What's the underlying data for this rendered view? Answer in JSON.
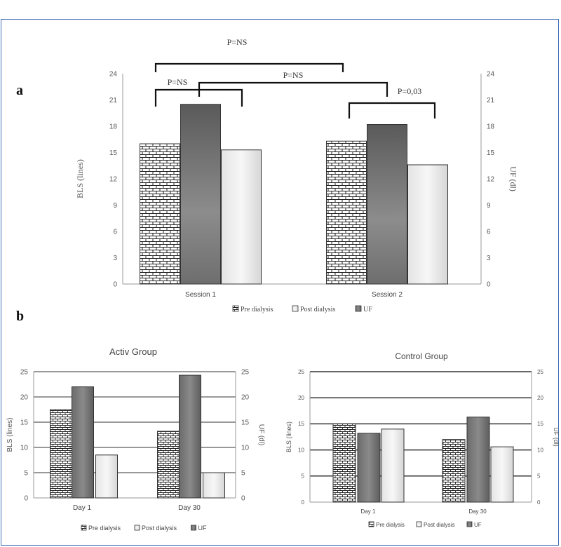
{
  "panel_labels": {
    "a": "a",
    "b": "b"
  },
  "colors": {
    "frame": "#3e6db3",
    "uf_bar": "#7a7a7a",
    "post_bar": "#d9d9d9",
    "pre_pattern": "#222222"
  },
  "legend_a": {
    "pre": "Pre dialysis",
    "post": "Post dialysis",
    "uf": "UF"
  },
  "legend_b": {
    "pre": "Pre dialysis",
    "post": "Post dialysis",
    "uf": "UF"
  },
  "annotations_a": {
    "outer": "P=NS",
    "left": "P=NS",
    "middle": "P=NS",
    "right": "P=0,03"
  },
  "chart_data": [
    {
      "type": "bar",
      "title": "",
      "categories": [
        "Session 1",
        "Session 2"
      ],
      "series": [
        {
          "name": "Pre dialysis",
          "axis": "left",
          "values": [
            16,
            16.3
          ]
        },
        {
          "name": "UF",
          "axis": "right",
          "values": [
            20.5,
            18.2
          ]
        },
        {
          "name": "Post dialysis",
          "axis": "left",
          "values": [
            15.3,
            13.6
          ]
        }
      ],
      "ylabel": "BLS (lines)",
      "ylabel2": "UF (dl)",
      "ylim": [
        0,
        24
      ],
      "ylim2": [
        0,
        24
      ],
      "yticks": [
        "0",
        "3",
        "6",
        "9",
        "12",
        "15",
        "18",
        "21",
        "24"
      ],
      "grid": false,
      "legend": "bottom"
    },
    {
      "type": "bar",
      "title": "Activ Group",
      "categories": [
        "Day 1",
        "Day 30"
      ],
      "series": [
        {
          "name": "Pre dialysis",
          "axis": "left",
          "values": [
            17.5,
            13.2
          ]
        },
        {
          "name": "UF",
          "axis": "right",
          "values": [
            22,
            24.3
          ]
        },
        {
          "name": "Post dialysis",
          "axis": "left",
          "values": [
            8.5,
            5
          ]
        }
      ],
      "ylabel": "BLS (lines)",
      "ylabel2": "UF (dl)",
      "ylim": [
        0,
        25
      ],
      "ylim2": [
        0,
        25
      ],
      "yticks": [
        "0",
        "5",
        "10",
        "15",
        "20",
        "25"
      ],
      "grid": true,
      "legend": "bottom"
    },
    {
      "type": "bar",
      "title": "Control Group",
      "categories": [
        "Day 1",
        "Day 30"
      ],
      "series": [
        {
          "name": "Pre dialysis",
          "axis": "left",
          "values": [
            15,
            12
          ]
        },
        {
          "name": "UF",
          "axis": "right",
          "values": [
            13.2,
            16.3
          ]
        },
        {
          "name": "Post dialysis",
          "axis": "left",
          "values": [
            14,
            10.6
          ]
        }
      ],
      "ylabel": "BLS (lines)",
      "ylabel2": "UF (dl)",
      "ylim": [
        0,
        25
      ],
      "ylim2": [
        0,
        25
      ],
      "yticks": [
        "0",
        "5",
        "10",
        "15",
        "20",
        "25"
      ],
      "grid": true,
      "legend": "bottom"
    }
  ]
}
